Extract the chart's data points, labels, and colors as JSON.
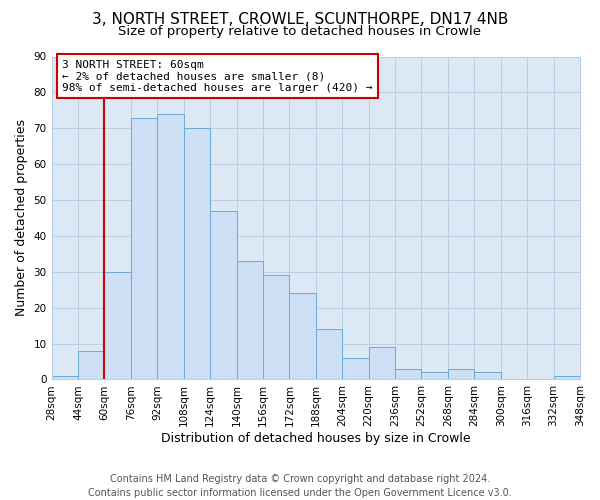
{
  "title": "3, NORTH STREET, CROWLE, SCUNTHORPE, DN17 4NB",
  "subtitle": "Size of property relative to detached houses in Crowle",
  "xlabel": "Distribution of detached houses by size in Crowle",
  "ylabel": "Number of detached properties",
  "bin_labels": [
    "28sqm",
    "44sqm",
    "60sqm",
    "76sqm",
    "92sqm",
    "108sqm",
    "124sqm",
    "140sqm",
    "156sqm",
    "172sqm",
    "188sqm",
    "204sqm",
    "220sqm",
    "236sqm",
    "252sqm",
    "268sqm",
    "284sqm",
    "300sqm",
    "316sqm",
    "332sqm",
    "348sqm"
  ],
  "bar_heights": [
    1,
    8,
    30,
    73,
    74,
    70,
    47,
    33,
    29,
    24,
    14,
    6,
    9,
    3,
    2,
    3,
    2,
    0,
    0,
    1
  ],
  "bin_width": 16,
  "ylim": [
    0,
    90
  ],
  "yticks": [
    0,
    10,
    20,
    30,
    40,
    50,
    60,
    70,
    80,
    90
  ],
  "bar_color": "#ccdff5",
  "bar_edge_color": "#6aaad4",
  "vline_x": 60,
  "vline_color": "#cc0000",
  "annotation_title": "3 NORTH STREET: 60sqm",
  "annotation_line1": "← 2% of detached houses are smaller (8)",
  "annotation_line2": "98% of semi-detached houses are larger (420) →",
  "annotation_box_facecolor": "#ffffff",
  "annotation_box_edgecolor": "#cc0000",
  "footer_line1": "Contains HM Land Registry data © Crown copyright and database right 2024.",
  "footer_line2": "Contains public sector information licensed under the Open Government Licence v3.0.",
  "bg_color": "#ffffff",
  "plot_bg_color": "#dce9f5",
  "grid_color": "#b8cfe8",
  "title_fontsize": 11,
  "subtitle_fontsize": 9.5,
  "axis_label_fontsize": 9,
  "tick_fontsize": 7.5,
  "annotation_fontsize": 8,
  "footer_fontsize": 7
}
